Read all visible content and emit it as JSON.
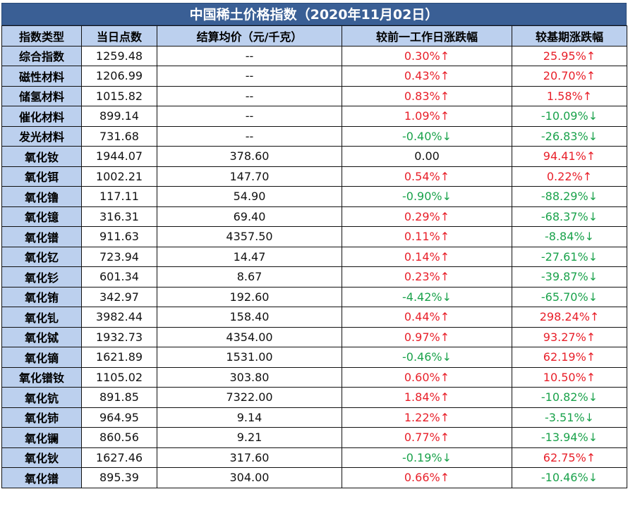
{
  "title": "中国稀土价格指数（2020年11月02日）",
  "columns": [
    "指数类型",
    "当日点数",
    "结算均价（元/千克）",
    "较前一工作日涨跌幅",
    "较基期涨跌幅"
  ],
  "colors": {
    "up": "#e8202a",
    "down": "#1aa24b",
    "header": "#bcd0ee",
    "title": "#3a5f95"
  },
  "rows": [
    {
      "name": "综合指数",
      "points": "1259.48",
      "price": "--",
      "day": "0.30%↑",
      "day_dir": "up",
      "base": "25.95%↑",
      "base_dir": "up"
    },
    {
      "name": "磁性材料",
      "points": "1206.99",
      "price": "--",
      "day": "0.43%↑",
      "day_dir": "up",
      "base": "20.70%↑",
      "base_dir": "up"
    },
    {
      "name": "储氢材料",
      "points": "1015.82",
      "price": "--",
      "day": "0.83%↑",
      "day_dir": "up",
      "base": "1.58%↑",
      "base_dir": "up"
    },
    {
      "name": "催化材料",
      "points": "899.14",
      "price": "--",
      "day": "1.09%↑",
      "day_dir": "up",
      "base": "-10.09%↓",
      "base_dir": "down"
    },
    {
      "name": "发光材料",
      "points": "731.68",
      "price": "--",
      "day": "-0.40%↓",
      "day_dir": "down",
      "base": "-26.83%↓",
      "base_dir": "down"
    },
    {
      "name": "氧化钕",
      "points": "1944.07",
      "price": "378.60",
      "day": "0.00",
      "day_dir": "flat",
      "base": "94.41%↑",
      "base_dir": "up"
    },
    {
      "name": "氧化铒",
      "points": "1002.21",
      "price": "147.70",
      "day": "0.54%↑",
      "day_dir": "up",
      "base": "0.22%↑",
      "base_dir": "up"
    },
    {
      "name": "氧化镥",
      "points": "117.11",
      "price": "54.90",
      "day": "-0.90%↓",
      "day_dir": "down",
      "base": "-88.29%↓",
      "base_dir": "down"
    },
    {
      "name": "氧化镱",
      "points": "316.31",
      "price": "69.40",
      "day": "0.29%↑",
      "day_dir": "up",
      "base": "-68.37%↓",
      "base_dir": "down"
    },
    {
      "name": "氧化镨",
      "points": "911.63",
      "price": "4357.50",
      "day": "0.11%↑",
      "day_dir": "up",
      "base": "-8.84%↓",
      "base_dir": "down"
    },
    {
      "name": "氧化钇",
      "points": "723.94",
      "price": "14.47",
      "day": "0.14%↑",
      "day_dir": "up",
      "base": "-27.61%↓",
      "base_dir": "down"
    },
    {
      "name": "氧化钐",
      "points": "601.34",
      "price": "8.67",
      "day": "0.23%↑",
      "day_dir": "up",
      "base": "-39.87%↓",
      "base_dir": "down"
    },
    {
      "name": "氧化铕",
      "points": "342.97",
      "price": "192.60",
      "day": "-4.42%↓",
      "day_dir": "down",
      "base": "-65.70%↓",
      "base_dir": "down"
    },
    {
      "name": "氧化钆",
      "points": "3982.44",
      "price": "158.40",
      "day": "0.44%↑",
      "day_dir": "up",
      "base": "298.24%↑",
      "base_dir": "up"
    },
    {
      "name": "氧化铽",
      "points": "1932.73",
      "price": "4354.00",
      "day": "0.97%↑",
      "day_dir": "up",
      "base": "93.27%↑",
      "base_dir": "up"
    },
    {
      "name": "氧化镝",
      "points": "1621.89",
      "price": "1531.00",
      "day": "-0.46%↓",
      "day_dir": "down",
      "base": "62.19%↑",
      "base_dir": "up"
    },
    {
      "name": "氧化镨钕",
      "points": "1105.02",
      "price": "303.80",
      "day": "0.60%↑",
      "day_dir": "up",
      "base": "10.50%↑",
      "base_dir": "up"
    },
    {
      "name": "氧化钪",
      "points": "891.85",
      "price": "7322.00",
      "day": "1.84%↑",
      "day_dir": "up",
      "base": "-10.82%↓",
      "base_dir": "down"
    },
    {
      "name": "氧化铈",
      "points": "964.95",
      "price": "9.14",
      "day": "1.22%↑",
      "day_dir": "up",
      "base": "-3.51%↓",
      "base_dir": "down"
    },
    {
      "name": "氧化镧",
      "points": "860.56",
      "price": "9.21",
      "day": "0.77%↑",
      "day_dir": "up",
      "base": "-13.94%↓",
      "base_dir": "down"
    },
    {
      "name": "氧化钬",
      "points": "1627.46",
      "price": "317.60",
      "day": "-0.19%↓",
      "day_dir": "down",
      "base": "62.75%↑",
      "base_dir": "up"
    },
    {
      "name": "氧化镨",
      "points": "895.39",
      "price": "304.00",
      "day": "0.66%↑",
      "day_dir": "up",
      "base": "-10.46%↓",
      "base_dir": "down"
    }
  ]
}
